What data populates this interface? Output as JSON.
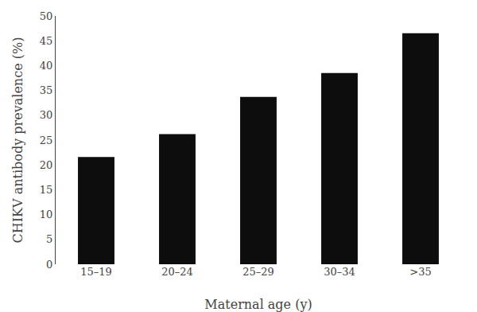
{
  "chart_data": {
    "type": "bar",
    "categories": [
      "15–19",
      "20–24",
      "25–29",
      "30–34",
      ">35"
    ],
    "values": [
      21.6,
      26.2,
      33.7,
      38.5,
      46.5
    ],
    "color": "#0d0d0d",
    "xlabel": "Maternal age (y)",
    "ylabel": "CHIKV antibody prevalence (%)",
    "ylim": [
      0,
      50
    ],
    "yticks": [
      0,
      5,
      10,
      15,
      20,
      25,
      30,
      35,
      40,
      45,
      50
    ],
    "grid": false
  }
}
